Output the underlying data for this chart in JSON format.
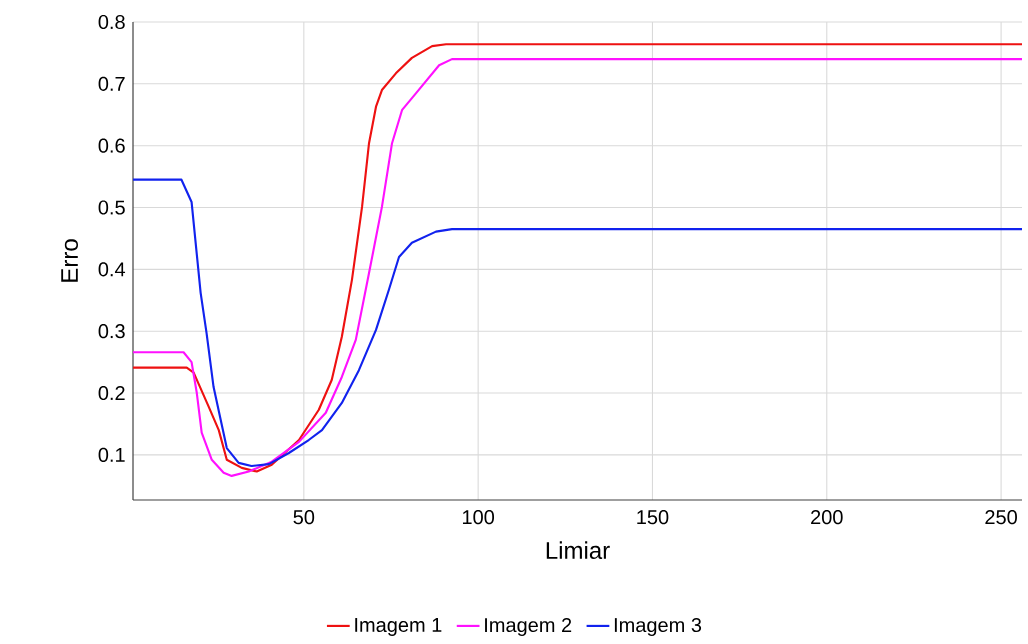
{
  "chart_data": {
    "type": "line",
    "xlabel": "Limiar",
    "ylabel": "Erro",
    "xlim": [
      1,
      256
    ],
    "ylim": [
      0.027,
      0.8
    ],
    "xticks": [
      50,
      100,
      150,
      200,
      250
    ],
    "yticks": [
      0.1,
      0.2,
      0.3,
      0.4,
      0.5,
      0.6,
      0.7,
      0.8
    ],
    "grid": true,
    "legend": "bottom",
    "marker": "none",
    "line_style": "solid",
    "series": [
      {
        "name": "Imagem 1",
        "color": "#ee1111",
        "x": [
          1,
          16.4,
          18.4,
          22.7,
          25.6,
          27.9,
          32.2,
          36.5,
          40.8,
          48.6,
          54.3,
          58,
          60.9,
          63.8,
          66.7,
          68.7,
          70.7,
          72.4,
          76.4,
          81,
          86.8,
          90.8,
          256
        ],
        "values": [
          0.241,
          0.241,
          0.233,
          0.178,
          0.14,
          0.092,
          0.079,
          0.073,
          0.084,
          0.124,
          0.173,
          0.221,
          0.291,
          0.383,
          0.501,
          0.604,
          0.663,
          0.69,
          0.717,
          0.742,
          0.761,
          0.764,
          0.764
        ]
      },
      {
        "name": "Imagem 2",
        "color": "#ff11ff",
        "x": [
          1,
          15.5,
          17.8,
          19.3,
          20.7,
          23.6,
          27,
          29.3,
          34.2,
          40.8,
          48.6,
          56.3,
          60.9,
          64.9,
          68.7,
          72.4,
          75.3,
          78.2,
          82.2,
          88.8,
          92.5,
          256
        ],
        "values": [
          0.266,
          0.266,
          0.25,
          0.2,
          0.136,
          0.092,
          0.071,
          0.066,
          0.073,
          0.089,
          0.121,
          0.168,
          0.226,
          0.286,
          0.394,
          0.501,
          0.604,
          0.658,
          0.685,
          0.73,
          0.74,
          0.74
        ]
      },
      {
        "name": "Imagem 3",
        "color": "#1122ee",
        "x": [
          1,
          14.9,
          17.8,
          20.4,
          22.1,
          24.1,
          27.9,
          31.3,
          35,
          40,
          45.7,
          51.4,
          55.2,
          60.9,
          65.8,
          70.7,
          74.4,
          77.3,
          81,
          87.9,
          92.5,
          256
        ],
        "values": [
          0.545,
          0.545,
          0.509,
          0.362,
          0.297,
          0.21,
          0.111,
          0.087,
          0.082,
          0.085,
          0.103,
          0.124,
          0.14,
          0.184,
          0.237,
          0.302,
          0.367,
          0.42,
          0.443,
          0.461,
          0.465,
          0.465
        ]
      }
    ]
  }
}
